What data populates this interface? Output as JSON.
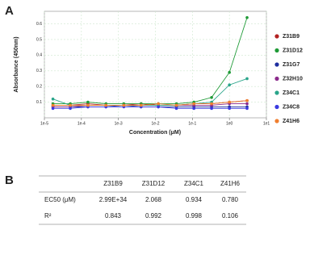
{
  "panels": {
    "a": "A",
    "b": "B"
  },
  "chart_data": {
    "type": "line",
    "ylabel": "Absorbance (450nm)",
    "xlabel": "Concentration (μM)",
    "xscale": "log",
    "grid": true,
    "xlim": [
      1e-05,
      10
    ],
    "xticks": [
      {
        "value": 1e-05,
        "label": "1e-5"
      },
      {
        "value": 0.0001,
        "label": "1e-4"
      },
      {
        "value": 0.001,
        "label": "1e-3"
      },
      {
        "value": 0.01,
        "label": "1e-2"
      },
      {
        "value": 0.1,
        "label": "1e-1"
      },
      {
        "value": 1,
        "label": "1e0"
      },
      {
        "value": 10,
        "label": "1e1"
      }
    ],
    "ylim": [
      0,
      0.68
    ],
    "yticks": [
      0.1,
      0.2,
      0.3,
      0.4,
      0.5,
      0.6
    ],
    "x": [
      1.7e-05,
      5e-05,
      0.00015,
      0.00046,
      0.0014,
      0.0041,
      0.012,
      0.037,
      0.11,
      0.33,
      1,
      3
    ],
    "series": [
      {
        "name": "Z31B9",
        "color": "#b22222",
        "values": [
          0.08,
          0.08,
          0.09,
          0.08,
          0.08,
          0.09,
          0.08,
          0.08,
          0.09,
          0.09,
          0.1,
          0.11
        ]
      },
      {
        "name": "Z31D12",
        "color": "#1e9a36",
        "values": [
          0.09,
          0.09,
          0.1,
          0.09,
          0.09,
          0.09,
          0.09,
          0.09,
          0.1,
          0.13,
          0.29,
          0.64
        ]
      },
      {
        "name": "Z31G7",
        "color": "#1f2f9f",
        "values": [
          0.07,
          0.07,
          0.07,
          0.07,
          0.08,
          0.07,
          0.07,
          0.07,
          0.07,
          0.07,
          0.07,
          0.07
        ]
      },
      {
        "name": "Z32H10",
        "color": "#8b2a8b",
        "values": [
          0.07,
          0.07,
          0.08,
          0.08,
          0.08,
          0.08,
          0.08,
          0.08,
          0.08,
          0.08,
          0.09,
          0.09
        ]
      },
      {
        "name": "Z34C1",
        "color": "#2aa58a",
        "values": [
          0.12,
          0.08,
          0.08,
          0.08,
          0.08,
          0.08,
          0.08,
          0.08,
          0.09,
          0.1,
          0.21,
          0.25
        ]
      },
      {
        "name": "Z34C8",
        "color": "#3a3ae0",
        "values": [
          0.06,
          0.06,
          0.07,
          0.07,
          0.07,
          0.07,
          0.07,
          0.06,
          0.06,
          0.06,
          0.06,
          0.06
        ]
      },
      {
        "name": "Z41H6",
        "color": "#f07f30",
        "values": [
          0.08,
          0.08,
          0.08,
          0.08,
          0.08,
          0.08,
          0.09,
          0.08,
          0.09,
          0.09,
          0.1,
          0.11
        ]
      }
    ]
  },
  "table": {
    "columns": [
      "Z31B9",
      "Z31D12",
      "Z34C1",
      "Z41H6"
    ],
    "rows": [
      {
        "label": "EC50 (μM)",
        "cells": [
          "2.99E+34",
          "2.068",
          "0.934",
          "0.780"
        ]
      },
      {
        "label": "R²",
        "cells": [
          "0.843",
          "0.992",
          "0.998",
          "0.106"
        ]
      }
    ]
  }
}
